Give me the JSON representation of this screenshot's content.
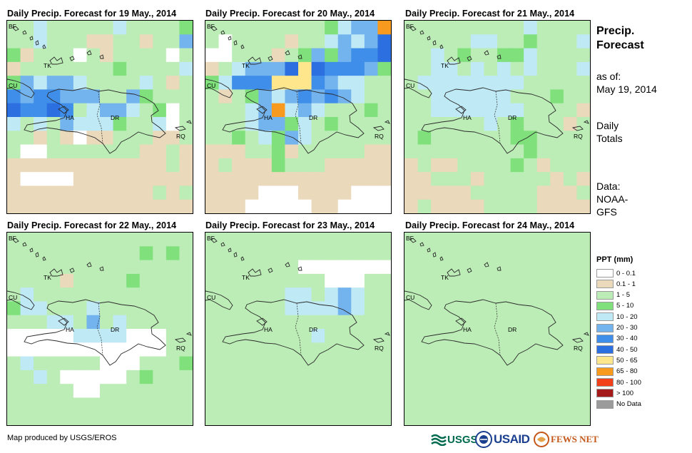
{
  "panels": [
    {
      "title": "Daily Precip. Forecast for 19 May., 2014"
    },
    {
      "title": "Daily Precip. Forecast for 20 May., 2014"
    },
    {
      "title": "Daily Precip. Forecast for 21 May., 2014"
    },
    {
      "title": "Daily Precip. Forecast for 22 May., 2014"
    },
    {
      "title": "Daily Precip. Forecast for 23 May., 2014"
    },
    {
      "title": "Daily Precip. Forecast for 24 May., 2014"
    }
  ],
  "map_labels": {
    "bf": "BF",
    "tk": "TK",
    "cu": "CU",
    "ha": "HA",
    "dr": "DR",
    "rq": "RQ"
  },
  "side": {
    "title_line1": "Precip.",
    "title_line2": "Forecast",
    "asof_label": "as of:",
    "asof_date": "May 19, 2014",
    "totals_line1": "Daily",
    "totals_line2": "Totals",
    "data_line1": "Data:",
    "data_line2": "NOAA-",
    "data_line3": "GFS"
  },
  "legend": {
    "title": "PPT (mm)",
    "items": [
      {
        "label": "0 - 0.1",
        "color": "#ffffff"
      },
      {
        "label": "0.1 - 1",
        "color": "#ead9bb"
      },
      {
        "label": "1 - 5",
        "color": "#bcedb6"
      },
      {
        "label": "5 - 10",
        "color": "#7fe07c"
      },
      {
        "label": "10 - 20",
        "color": "#bfe9f5"
      },
      {
        "label": "20 - 30",
        "color": "#74b4ee"
      },
      {
        "label": "30 - 40",
        "color": "#3f8ee9"
      },
      {
        "label": "40 - 50",
        "color": "#2c6fe0"
      },
      {
        "label": "50 - 65",
        "color": "#fde68c"
      },
      {
        "label": "65 - 80",
        "color": "#f79a1d"
      },
      {
        "label": "80 - 100",
        "color": "#f2401a"
      },
      {
        "label": "> 100",
        "color": "#a51b1b"
      },
      {
        "label": "No Data",
        "color": "#9b9b9b"
      }
    ]
  },
  "footer": {
    "credit": "Map produced by USGS/EROS",
    "logo_usgs": "USGS",
    "logo_usaid": "USAID",
    "logo_fewsnet": "FEWS NET"
  },
  "map_data": {
    "legend_index": "0=0-0.1, 1=0.1-1, 2=1-5, 3=5-10, 4=10-20, 5=20-30, 6=30-40, 7=40-50, 8=50-65, 9=65-80, 10=80-100, 11=>100",
    "grids": [
      [
        "22422222422223",
        "22422211221225",
        "31222021222202",
        "12222222322224",
        "35455422224212",
        "65665552253222",
        "76676245542302",
        "42425444322402",
        "22121011222112",
        "20022222221121",
        "11111111111121",
        "10000111111111",
        "11111111111212",
        "11111111111111"
      ],
      [
        "22222222234559",
        "20222212245457",
        "00222123535667",
        "12455578766653",
        "34666888654422",
        "21235456565422",
        "22245945422232",
        "22245534232222",
        "22324354222222",
        "11122312222211",
        "12111322211111",
        "11111111111111",
        "11110001111000",
        "11100000110000"
      ],
      [
        "22222222242222",
        "22222442232224",
        "22423223342222",
        "22442424242224",
        "24444444422222",
        "22444444222322",
        "22444444422221",
        "22222242322212",
        "23222222332222",
        "22222222232222",
        "12112222321222",
        "11222122222121",
        "11111222221112",
        "12111122221111"
      ],
      [
        "22222222222222",
        "22222222223232",
        "22222222222222",
        "22221222232222",
        "24222222222222",
        "34422242222222",
        "22244252422222",
        "00000444400022",
        "00000000000022",
        "24222220002223",
        "22420000023222",
        "22222002222222",
        "22222222222222",
        "22222222222222"
      ],
      [
        "22222222222222",
        "22222222222222",
        "22222220000000",
        "22222222200022",
        "22222244245422",
        "22222244445422",
        "22222222222222",
        "22222222422222",
        "22222222222222",
        "22222222222222",
        "22222222222222",
        "22222222222222",
        "22222222222222",
        "22222222222222"
      ],
      [
        "22222222222222",
        "22222222222222",
        "22222222222222",
        "22222222222222",
        "22222222222222",
        "22222222222222",
        "22222222222222",
        "22222222222222",
        "22222222222222",
        "22222222222222",
        "22222222222222",
        "22222222222222",
        "22222222222222",
        "22222222222222"
      ]
    ]
  }
}
